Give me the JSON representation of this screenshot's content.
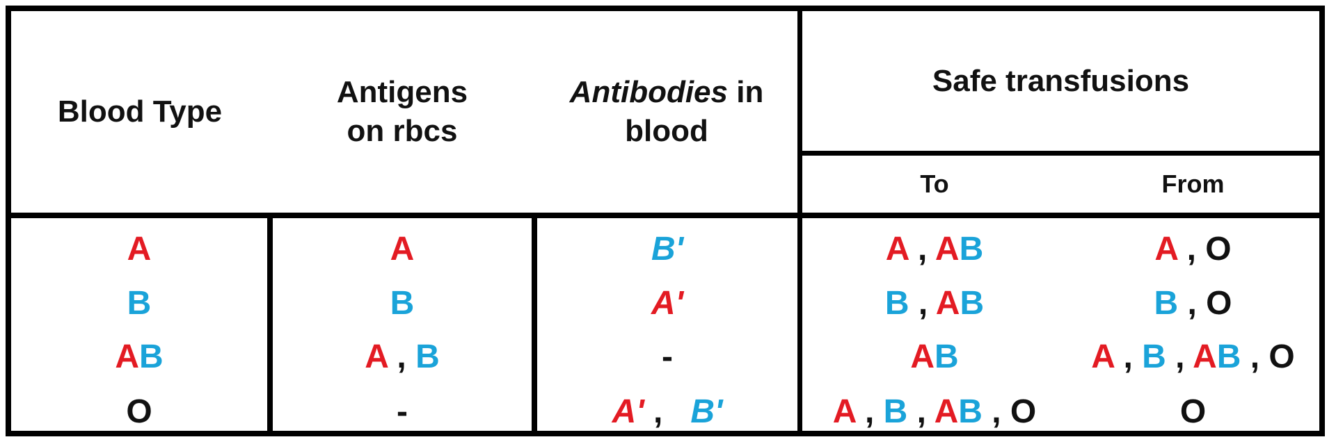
{
  "colors": {
    "red": "#e31b23",
    "blue": "#1aa3d9",
    "black": "#111111"
  },
  "header": {
    "blood_type": "Blood Type",
    "antigens_line1": "Antigens",
    "antigens_line2": "on rbcs",
    "antibodies_word": "Antibodies",
    "antibodies_in": " in",
    "antibodies_line2": "blood",
    "safe_transfusions": "Safe transfusions",
    "to": "To",
    "from": "From"
  },
  "rows": [
    {
      "blood_type": [
        {
          "t": "A",
          "c": "red"
        }
      ],
      "antigens": [
        {
          "t": "A",
          "c": "red"
        }
      ],
      "antibodies": [
        {
          "t": "B'",
          "c": "blue",
          "i": true
        }
      ],
      "to": [
        {
          "t": "A",
          "c": "red"
        },
        {
          "t": " , ",
          "c": "black"
        },
        {
          "t": "A",
          "c": "red"
        },
        {
          "t": "B",
          "c": "blue"
        }
      ],
      "from": [
        {
          "t": "A",
          "c": "red"
        },
        {
          "t": " , O",
          "c": "black"
        }
      ]
    },
    {
      "blood_type": [
        {
          "t": "B",
          "c": "blue"
        }
      ],
      "antigens": [
        {
          "t": "B",
          "c": "blue"
        }
      ],
      "antibodies": [
        {
          "t": "A'",
          "c": "red",
          "i": true
        }
      ],
      "to": [
        {
          "t": "B",
          "c": "blue"
        },
        {
          "t": " , ",
          "c": "black"
        },
        {
          "t": "A",
          "c": "red"
        },
        {
          "t": "B",
          "c": "blue"
        }
      ],
      "from": [
        {
          "t": "B",
          "c": "blue"
        },
        {
          "t": " , O",
          "c": "black"
        }
      ]
    },
    {
      "blood_type": [
        {
          "t": "A",
          "c": "red"
        },
        {
          "t": "B",
          "c": "blue"
        }
      ],
      "antigens": [
        {
          "t": "A",
          "c": "red"
        },
        {
          "t": " , ",
          "c": "black"
        },
        {
          "t": "B",
          "c": "blue"
        }
      ],
      "antibodies": [
        {
          "t": "-",
          "c": "black"
        }
      ],
      "to": [
        {
          "t": "A",
          "c": "red"
        },
        {
          "t": "B",
          "c": "blue"
        }
      ],
      "from": [
        {
          "t": "A",
          "c": "red"
        },
        {
          "t": " , ",
          "c": "black"
        },
        {
          "t": "B",
          "c": "blue"
        },
        {
          "t": " , ",
          "c": "black"
        },
        {
          "t": "A",
          "c": "red"
        },
        {
          "t": "B",
          "c": "blue"
        },
        {
          "t": " , O",
          "c": "black"
        }
      ]
    },
    {
      "blood_type": [
        {
          "t": "O",
          "c": "black"
        }
      ],
      "antigens": [
        {
          "t": "-",
          "c": "black"
        }
      ],
      "antibodies": [
        {
          "t": "A'",
          "c": "red",
          "i": true
        },
        {
          "t": " ,   ",
          "c": "black"
        },
        {
          "t": "B'",
          "c": "blue",
          "i": true
        }
      ],
      "to": [
        {
          "t": "A",
          "c": "red"
        },
        {
          "t": " , ",
          "c": "black"
        },
        {
          "t": "B",
          "c": "blue"
        },
        {
          "t": " , ",
          "c": "black"
        },
        {
          "t": "A",
          "c": "red"
        },
        {
          "t": "B",
          "c": "blue"
        },
        {
          "t": " , O",
          "c": "black"
        }
      ],
      "from": [
        {
          "t": "O",
          "c": "black"
        }
      ]
    }
  ]
}
